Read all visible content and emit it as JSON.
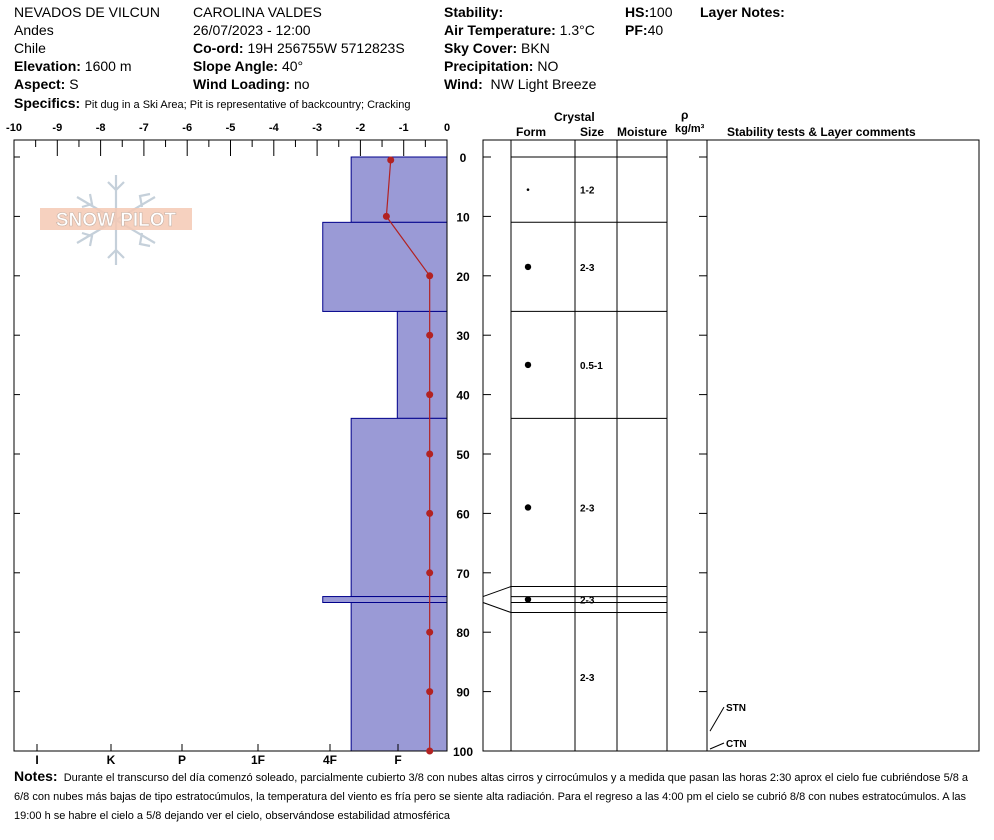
{
  "header": {
    "location": "NEVADOS DE VILCUN",
    "range": "Andes",
    "country": "Chile",
    "elevation_label": "Elevation:",
    "elevation_value": "1600 m",
    "aspect_label": "Aspect:",
    "aspect_value": "S",
    "observer": "CAROLINA  VALDES",
    "datetime": "26/07/2023 - 12:00",
    "coord_label": "Co-ord:",
    "coord_value": "19H 256755W 5712823S",
    "slope_label": "Slope Angle:",
    "slope_value": "40°",
    "wind_loading_label": "Wind Loading:",
    "wind_loading_value": "no",
    "stability_label": "Stability:",
    "air_temp_label": "Air Temperature:",
    "air_temp_value": "1.3°C",
    "sky_label": "Sky Cover:",
    "sky_value": "BKN",
    "precip_label": "Precipitation:",
    "precip_value": "NO",
    "wind_label": "Wind:",
    "wind_value": "NW Light Breeze",
    "hs_label": "HS:",
    "hs_value": "100",
    "pf_label": "PF:",
    "pf_value": "40",
    "layer_notes_label": "Layer Notes:",
    "specifics_label": "Specifics:",
    "specifics_value": "Pit dug in a Ski Area;  Pit is representative of backcountry;  Cracking"
  },
  "columns": {
    "crystal": "Crystal",
    "form": "Form",
    "size": "Size",
    "moisture": "Moisture",
    "rho": "ρ",
    "density_unit": "kg/m³",
    "stability": "Stability tests & Layer comments"
  },
  "watermark": "SNOW PILOT",
  "notes": {
    "label": "Notes:",
    "text": "Durante el transcurso del día comenzó soleado, parcialmente cubierto 3/8 con nubes altas cirros y cirrocúmulos y a medida que pasan las horas 2:30 aprox el cielo fue cubriéndose 5/8 a 6/8 con nubes más bajas de tipo estratocúmulos, la temperatura del viento es fría pero se siente alta radiación. Para el regreso a las 4:00 pm el cielo se cubrió 8/8 con nubes estratocúmulos. A las 19:00 h se habre el cielo a 5/8 dejando ver el cielo, observándose estabilidad atmosférica"
  },
  "colors": {
    "hardness_fill": "#9a9ad6",
    "hardness_stroke": "#00008b",
    "temp_line": "#b22222"
  },
  "chart_data": {
    "type": "snow-profile",
    "depth_range": [
      0,
      100
    ],
    "depth_ticks": [
      0,
      10,
      20,
      30,
      40,
      50,
      60,
      70,
      80,
      90,
      100
    ],
    "temp_range": [
      -10,
      0
    ],
    "temp_ticks": [
      "-10",
      "-9",
      "-8",
      "-7",
      "-6",
      "-5",
      "-4",
      "-3",
      "-2",
      "-1",
      "0"
    ],
    "hardness_scale": [
      "I",
      "K",
      "P",
      "1F",
      "4F",
      "F"
    ],
    "layers": [
      {
        "top": 0,
        "bottom": 11,
        "hardness_index": 1.35,
        "size": "1-2",
        "grain": "small-dot"
      },
      {
        "top": 11,
        "bottom": 26,
        "hardness_index": 1.75,
        "size": "2-3",
        "grain": "dot"
      },
      {
        "top": 26,
        "bottom": 44,
        "hardness_index": 0.7,
        "size": "0.5-1",
        "grain": "dot"
      },
      {
        "top": 44,
        "bottom": 74,
        "hardness_index": 1.35,
        "size": "2-3",
        "grain": "dot"
      },
      {
        "top": 74,
        "bottom": 75,
        "hardness_index": 1.75,
        "size": "2-3",
        "grain": "dot"
      },
      {
        "top": 75,
        "bottom": 100,
        "hardness_index": 1.35,
        "size": "2-3",
        "grain": "none"
      }
    ],
    "temperature_profile": [
      {
        "depth": 0.5,
        "temp": -1.3
      },
      {
        "depth": 10,
        "temp": -1.4
      },
      {
        "depth": 20,
        "temp": -0.4
      },
      {
        "depth": 30,
        "temp": -0.4
      },
      {
        "depth": 40,
        "temp": -0.4
      },
      {
        "depth": 50,
        "temp": -0.4
      },
      {
        "depth": 60,
        "temp": -0.4
      },
      {
        "depth": 70,
        "temp": -0.4
      },
      {
        "depth": 80,
        "temp": -0.4
      },
      {
        "depth": 90,
        "temp": -0.4
      },
      {
        "depth": 100,
        "temp": -0.4
      }
    ],
    "stability_tests": [
      {
        "label": "STN",
        "depth": 97
      },
      {
        "label": "CTN",
        "depth": 100
      }
    ]
  }
}
